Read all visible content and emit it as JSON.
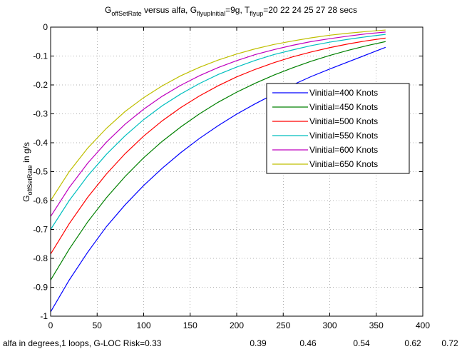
{
  "chart_data": {
    "type": "line",
    "title": {
      "g_main": "G",
      "g_sub": "offSetRate",
      "mid1": " versus alfa, G",
      "flyup_initial_sub": "flyupInitial",
      "mid2": "=9g, T",
      "flyup_sub": "flyup",
      "tail": "=20  22  24  25  27  28 secs"
    },
    "ylabel": {
      "main": "G",
      "sub": "offSetRate",
      "tail": " in g/s"
    },
    "xlabel_left": "alfa in degrees,1 loops, G-LOC Risk=0.33",
    "risk_values": [
      "0.39",
      "0.46",
      "0.54",
      "0.62",
      "0.72"
    ],
    "xlim": [
      0,
      400
    ],
    "ylim": [
      -1,
      0
    ],
    "xticks": [
      0,
      50,
      100,
      150,
      200,
      250,
      300,
      350,
      400
    ],
    "yticks": [
      0,
      -0.1,
      -0.2,
      -0.3,
      -0.4,
      -0.5,
      -0.6,
      -0.7,
      -0.8,
      -0.9,
      -1
    ],
    "ytick_labels": [
      "0",
      "-0.1",
      "-0.2",
      "-0.3",
      "-0.4",
      "-0.5",
      "-0.6",
      "-0.7",
      "-0.8",
      "-0.9",
      "-1"
    ],
    "grid": true,
    "legend_position": "upper-right",
    "x": [
      0,
      20,
      40,
      60,
      80,
      100,
      120,
      140,
      160,
      180,
      200,
      220,
      240,
      260,
      280,
      300,
      320,
      340,
      360
    ],
    "series": [
      {
        "name": "Vinitial=400 Knots",
        "color": "#0000ff",
        "values": [
          -0.985,
          -0.875,
          -0.778,
          -0.69,
          -0.615,
          -0.548,
          -0.488,
          -0.434,
          -0.385,
          -0.341,
          -0.301,
          -0.265,
          -0.232,
          -0.2,
          -0.171,
          -0.145,
          -0.12,
          -0.095,
          -0.07
        ]
      },
      {
        "name": "Vinitial=450 Knots",
        "color": "#008000",
        "values": [
          -0.875,
          -0.768,
          -0.673,
          -0.59,
          -0.517,
          -0.452,
          -0.395,
          -0.345,
          -0.3,
          -0.26,
          -0.225,
          -0.194,
          -0.166,
          -0.141,
          -0.118,
          -0.098,
          -0.08,
          -0.064,
          -0.05
        ]
      },
      {
        "name": "Vinitial=500 Knots",
        "color": "#ff0000",
        "values": [
          -0.785,
          -0.68,
          -0.588,
          -0.508,
          -0.438,
          -0.377,
          -0.324,
          -0.278,
          -0.238,
          -0.203,
          -0.172,
          -0.146,
          -0.123,
          -0.103,
          -0.086,
          -0.071,
          -0.058,
          -0.047,
          -0.038
        ]
      },
      {
        "name": "Vinitial=550 Knots",
        "color": "#00bfbf",
        "values": [
          -0.7,
          -0.6,
          -0.514,
          -0.44,
          -0.376,
          -0.32,
          -0.272,
          -0.231,
          -0.195,
          -0.164,
          -0.138,
          -0.115,
          -0.095,
          -0.079,
          -0.064,
          -0.052,
          -0.042,
          -0.033,
          -0.025
        ]
      },
      {
        "name": "Vinitial=600 Knots",
        "color": "#bf00bf",
        "values": [
          -0.655,
          -0.555,
          -0.47,
          -0.398,
          -0.336,
          -0.284,
          -0.239,
          -0.201,
          -0.168,
          -0.14,
          -0.116,
          -0.095,
          -0.078,
          -0.063,
          -0.05,
          -0.04,
          -0.031,
          -0.023,
          -0.017
        ]
      },
      {
        "name": "Vinitial=650 Knots",
        "color": "#bfbf00",
        "values": [
          -0.6,
          -0.5,
          -0.418,
          -0.35,
          -0.292,
          -0.244,
          -0.203,
          -0.168,
          -0.139,
          -0.114,
          -0.093,
          -0.075,
          -0.06,
          -0.048,
          -0.037,
          -0.028,
          -0.021,
          -0.015,
          -0.01
        ]
      }
    ]
  }
}
